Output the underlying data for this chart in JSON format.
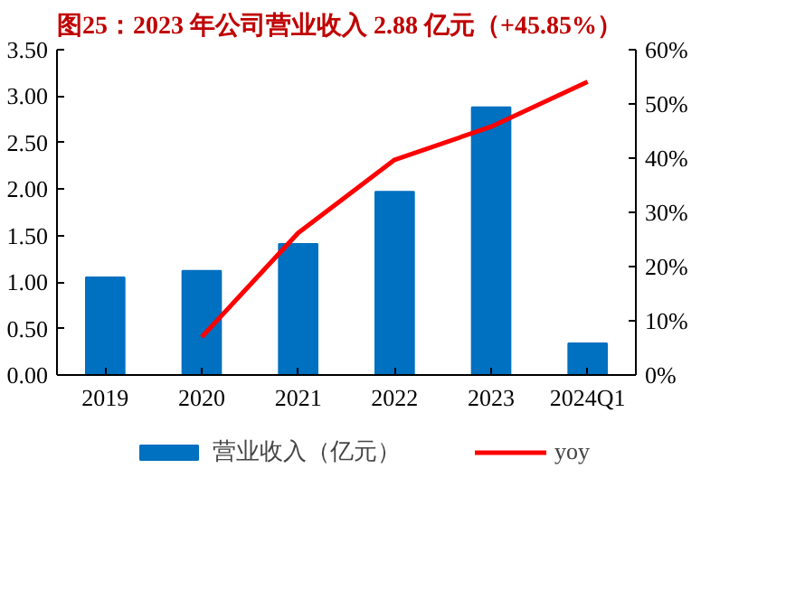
{
  "chart_data": {
    "type": "bar",
    "title": "图25：2023 年公司营业收入 2.88 亿元（+45.85%）",
    "categories": [
      "2019",
      "2020",
      "2021",
      "2022",
      "2023",
      "2024Q1"
    ],
    "series": [
      {
        "name": "营业收入（亿元）",
        "color": "#0070c0",
        "values": [
          1.05,
          1.12,
          1.41,
          1.97,
          2.88,
          0.34
        ]
      },
      {
        "name": "yoy",
        "type": "line",
        "axis": "y2",
        "color": "#ff0000",
        "values": [
          null,
          7.0,
          26.2,
          39.7,
          45.8,
          54.1
        ]
      }
    ],
    "ylim": [
      0,
      3.5
    ],
    "yticks": [
      {
        "value": 0,
        "label": "0.00"
      },
      {
        "value": 0.5,
        "label": "0.50"
      },
      {
        "value": 1,
        "label": "1.00"
      },
      {
        "value": 1.5,
        "label": "1.50"
      },
      {
        "value": 2,
        "label": "2.00"
      },
      {
        "value": 2.5,
        "label": "2.50"
      },
      {
        "value": 3,
        "label": "3.00"
      },
      {
        "value": 3.5,
        "label": "3.50"
      }
    ],
    "y2lim": [
      0,
      60
    ],
    "y2ticks": [
      {
        "value": 0,
        "label": "0%"
      },
      {
        "value": 10,
        "label": "10%"
      },
      {
        "value": 20,
        "label": "20%"
      },
      {
        "value": 30,
        "label": "30%"
      },
      {
        "value": 40,
        "label": "40%"
      },
      {
        "value": 50,
        "label": "50%"
      },
      {
        "value": 60,
        "label": "60%"
      }
    ],
    "grid": false,
    "legend": "bottom"
  }
}
